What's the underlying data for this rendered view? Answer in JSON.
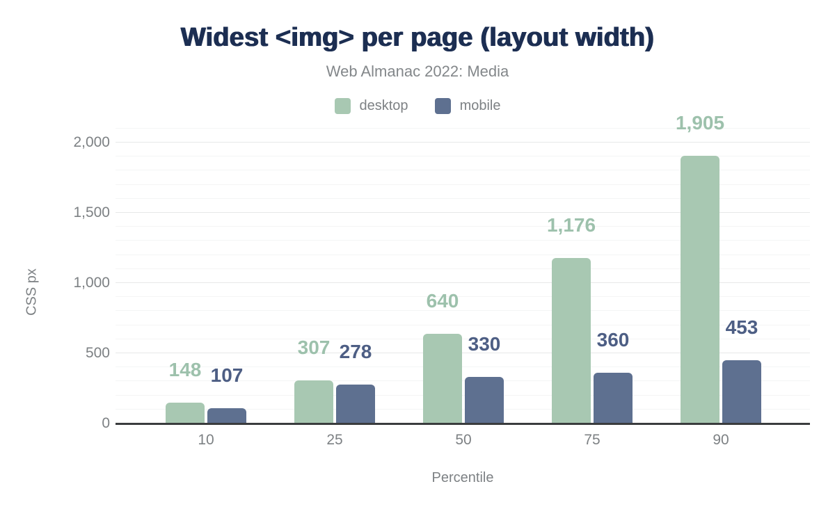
{
  "chart_data": {
    "type": "bar",
    "title": "Widest <img> per page (layout width)",
    "subtitle": "Web Almanac 2022: Media",
    "xlabel": "Percentile",
    "ylabel": "CSS px",
    "categories": [
      "10",
      "25",
      "50",
      "75",
      "90"
    ],
    "series": [
      {
        "name": "desktop",
        "color": "#a8c8b2",
        "label_color": "#9dc1ac",
        "values": [
          148,
          307,
          640,
          1176,
          1905
        ],
        "labels": [
          "148",
          "307",
          "640",
          "1,176",
          "1,905"
        ]
      },
      {
        "name": "mobile",
        "color": "#5e7090",
        "label_color": "#4d5e84",
        "values": [
          107,
          278,
          330,
          360,
          453
        ],
        "labels": [
          "107",
          "278",
          "330",
          "360",
          "453"
        ]
      }
    ],
    "ylim": [
      0,
      2100
    ],
    "yticks": [
      {
        "value": 0,
        "label": "0"
      },
      {
        "value": 500,
        "label": "500"
      },
      {
        "value": 1000,
        "label": "1,000"
      },
      {
        "value": 1500,
        "label": "1,500"
      },
      {
        "value": 2000,
        "label": "2,000"
      }
    ],
    "minor_grid_step": 100,
    "grid": true,
    "legend_position": "top",
    "title_color": "#1c2e52",
    "muted_text_color": "#7d8184",
    "axis_line_color": "#3a3c3e"
  }
}
